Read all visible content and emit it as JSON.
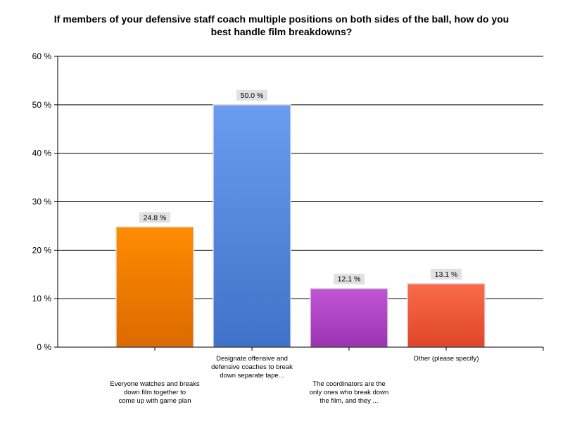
{
  "chart_data": {
    "type": "bar",
    "title_lines": [
      "If members of your defensive staff coach multiple positions on both sides of the ball, how do you",
      "best handle film breakdowns?"
    ],
    "categories": [
      [
        "Everyone watches and breaks",
        "down film together to",
        "come up with game plan"
      ],
      [
        "Designate offensive and",
        "defensive coaches to break",
        "down separate tape..."
      ],
      [
        "The coordinators are the",
        "only ones who break down",
        "the film, and they ..."
      ],
      [
        "Other (please specify)"
      ]
    ],
    "values": [
      24.8,
      50.0,
      12.1,
      13.1
    ],
    "value_labels": [
      "24.8 %",
      "50.0 %",
      "12.1 %",
      "13.1 %"
    ],
    "colors": [
      [
        "#ff8c00",
        "#dc6a00"
      ],
      [
        "#6a9cf0",
        "#3f72c8"
      ],
      [
        "#c155d6",
        "#9a34b2"
      ],
      [
        "#f96b4c",
        "#e04628"
      ]
    ],
    "y_ticks": [
      0,
      10,
      20,
      30,
      40,
      50,
      60
    ],
    "y_tick_labels": [
      "0 %",
      "10 %",
      "20 %",
      "30 %",
      "40 %",
      "50 %",
      "60 %"
    ],
    "ylim": [
      0,
      60
    ],
    "grid": true,
    "xlabel": "",
    "ylabel": ""
  }
}
